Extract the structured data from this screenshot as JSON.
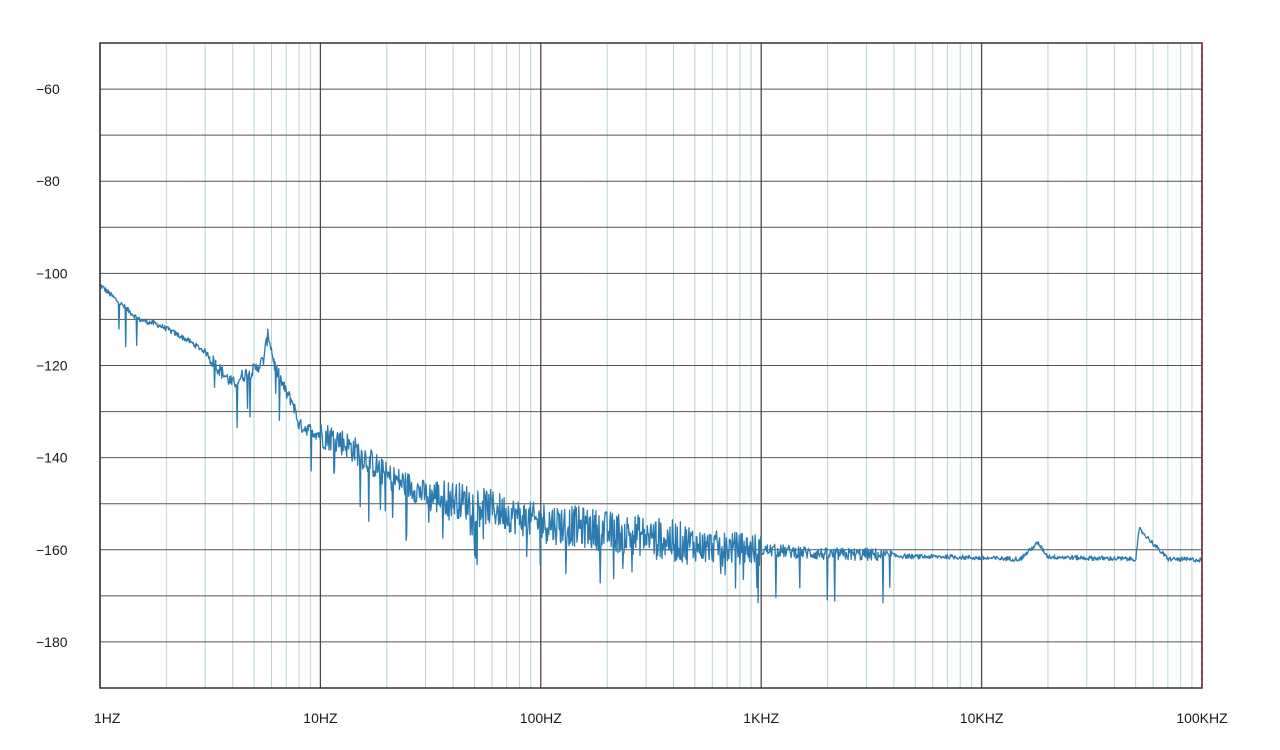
{
  "chart_data": {
    "type": "line",
    "title": "",
    "xlabel": "",
    "ylabel": "",
    "x_scale": "log",
    "xlim": [
      1,
      100000
    ],
    "ylim": [
      -190,
      -50
    ],
    "grid": true,
    "x_ticks": [
      {
        "value": 1,
        "label": "1HZ"
      },
      {
        "value": 10,
        "label": "10HZ"
      },
      {
        "value": 100,
        "label": "100HZ"
      },
      {
        "value": 1000,
        "label": "1KHZ"
      },
      {
        "value": 10000,
        "label": "10KHZ"
      },
      {
        "value": 100000,
        "label": "100KHZ"
      }
    ],
    "y_ticks": [
      {
        "value": -60,
        "label": "−60"
      },
      {
        "value": -80,
        "label": "−80"
      },
      {
        "value": -100,
        "label": "−100"
      },
      {
        "value": -120,
        "label": "−120"
      },
      {
        "value": -140,
        "label": "−140"
      },
      {
        "value": -160,
        "label": "−160"
      },
      {
        "value": -180,
        "label": "−180"
      }
    ],
    "series": [
      {
        "color": "#2b7bb0",
        "x": [
          1,
          1.2,
          1.5,
          1.8,
          2,
          2.5,
          3,
          3.5,
          4,
          4.5,
          5,
          5.5,
          5.8,
          6.2,
          7,
          7.5,
          8,
          9,
          10,
          12,
          15,
          18,
          20,
          25,
          30,
          40,
          50,
          60,
          70,
          80,
          100,
          150,
          200,
          300,
          400,
          500,
          700,
          1000,
          1500,
          2000,
          3000,
          5000,
          7000,
          10000,
          15000,
          18000,
          20000,
          30000,
          50000,
          52000,
          70000,
          100000
        ],
        "y": [
          -102.5,
          -106,
          -110,
          -111,
          -112,
          -114.5,
          -117,
          -121,
          -124,
          -122,
          -121,
          -119,
          -113,
          -120,
          -126,
          -128,
          -133,
          -134,
          -135,
          -136,
          -139,
          -142,
          -144,
          -146,
          -148,
          -149,
          -150,
          -151,
          -152,
          -153,
          -154,
          -155,
          -156,
          -157,
          -158,
          -159,
          -159.5,
          -160,
          -160.5,
          -161,
          -161,
          -161.5,
          -161.5,
          -161.8,
          -162,
          -158.5,
          -161.5,
          -161.8,
          -162,
          -155.5,
          -162,
          -162.2
        ]
      }
    ]
  }
}
